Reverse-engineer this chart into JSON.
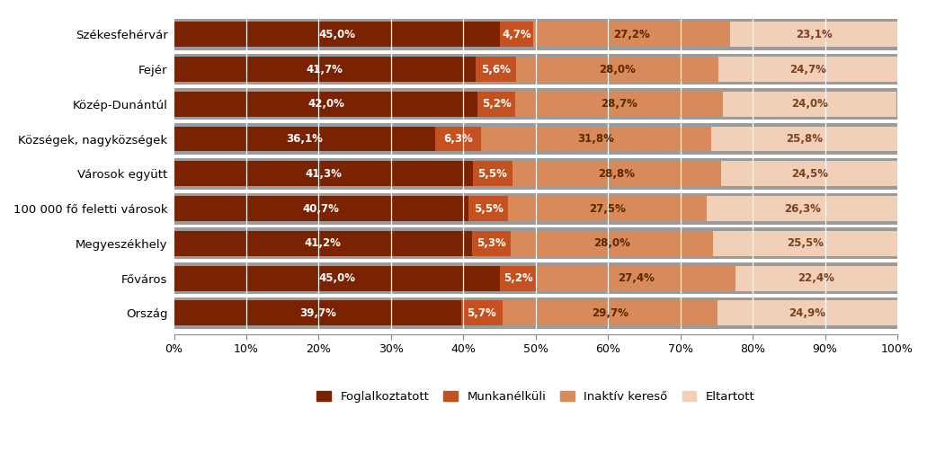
{
  "categories": [
    "Székesfehérvár",
    "Fejér",
    "Közép-Dunántúl",
    "Községek, nagyközségek",
    "Városok együtt",
    "100 000 fő feletti városok",
    "Megyeszékhely",
    "Főváros",
    "Ország"
  ],
  "series": {
    "Foglalkoztatott": [
      45.0,
      41.7,
      42.0,
      36.1,
      41.3,
      40.7,
      41.2,
      45.0,
      39.7
    ],
    "Munkanélküli": [
      4.7,
      5.6,
      5.2,
      6.3,
      5.5,
      5.5,
      5.3,
      5.2,
      5.7
    ],
    "Inaktív kereső": [
      27.2,
      28.0,
      28.7,
      31.8,
      28.8,
      27.5,
      28.0,
      27.4,
      29.7
    ],
    "Eltartott": [
      23.1,
      24.7,
      24.0,
      25.8,
      24.5,
      26.3,
      25.5,
      22.4,
      24.9
    ]
  },
  "bar_colors": [
    "#7B2200",
    "#C55020",
    "#D98A5A",
    "#F2D0B8"
  ],
  "series_names": [
    "Foglalkoztatott",
    "Munkanélküli",
    "Inaktív kereső",
    "Eltartott"
  ],
  "background_color": "#FFFFFF",
  "gray_color": "#9B9B9B",
  "figsize": [
    10.31,
    5.04
  ],
  "dpi": 100
}
